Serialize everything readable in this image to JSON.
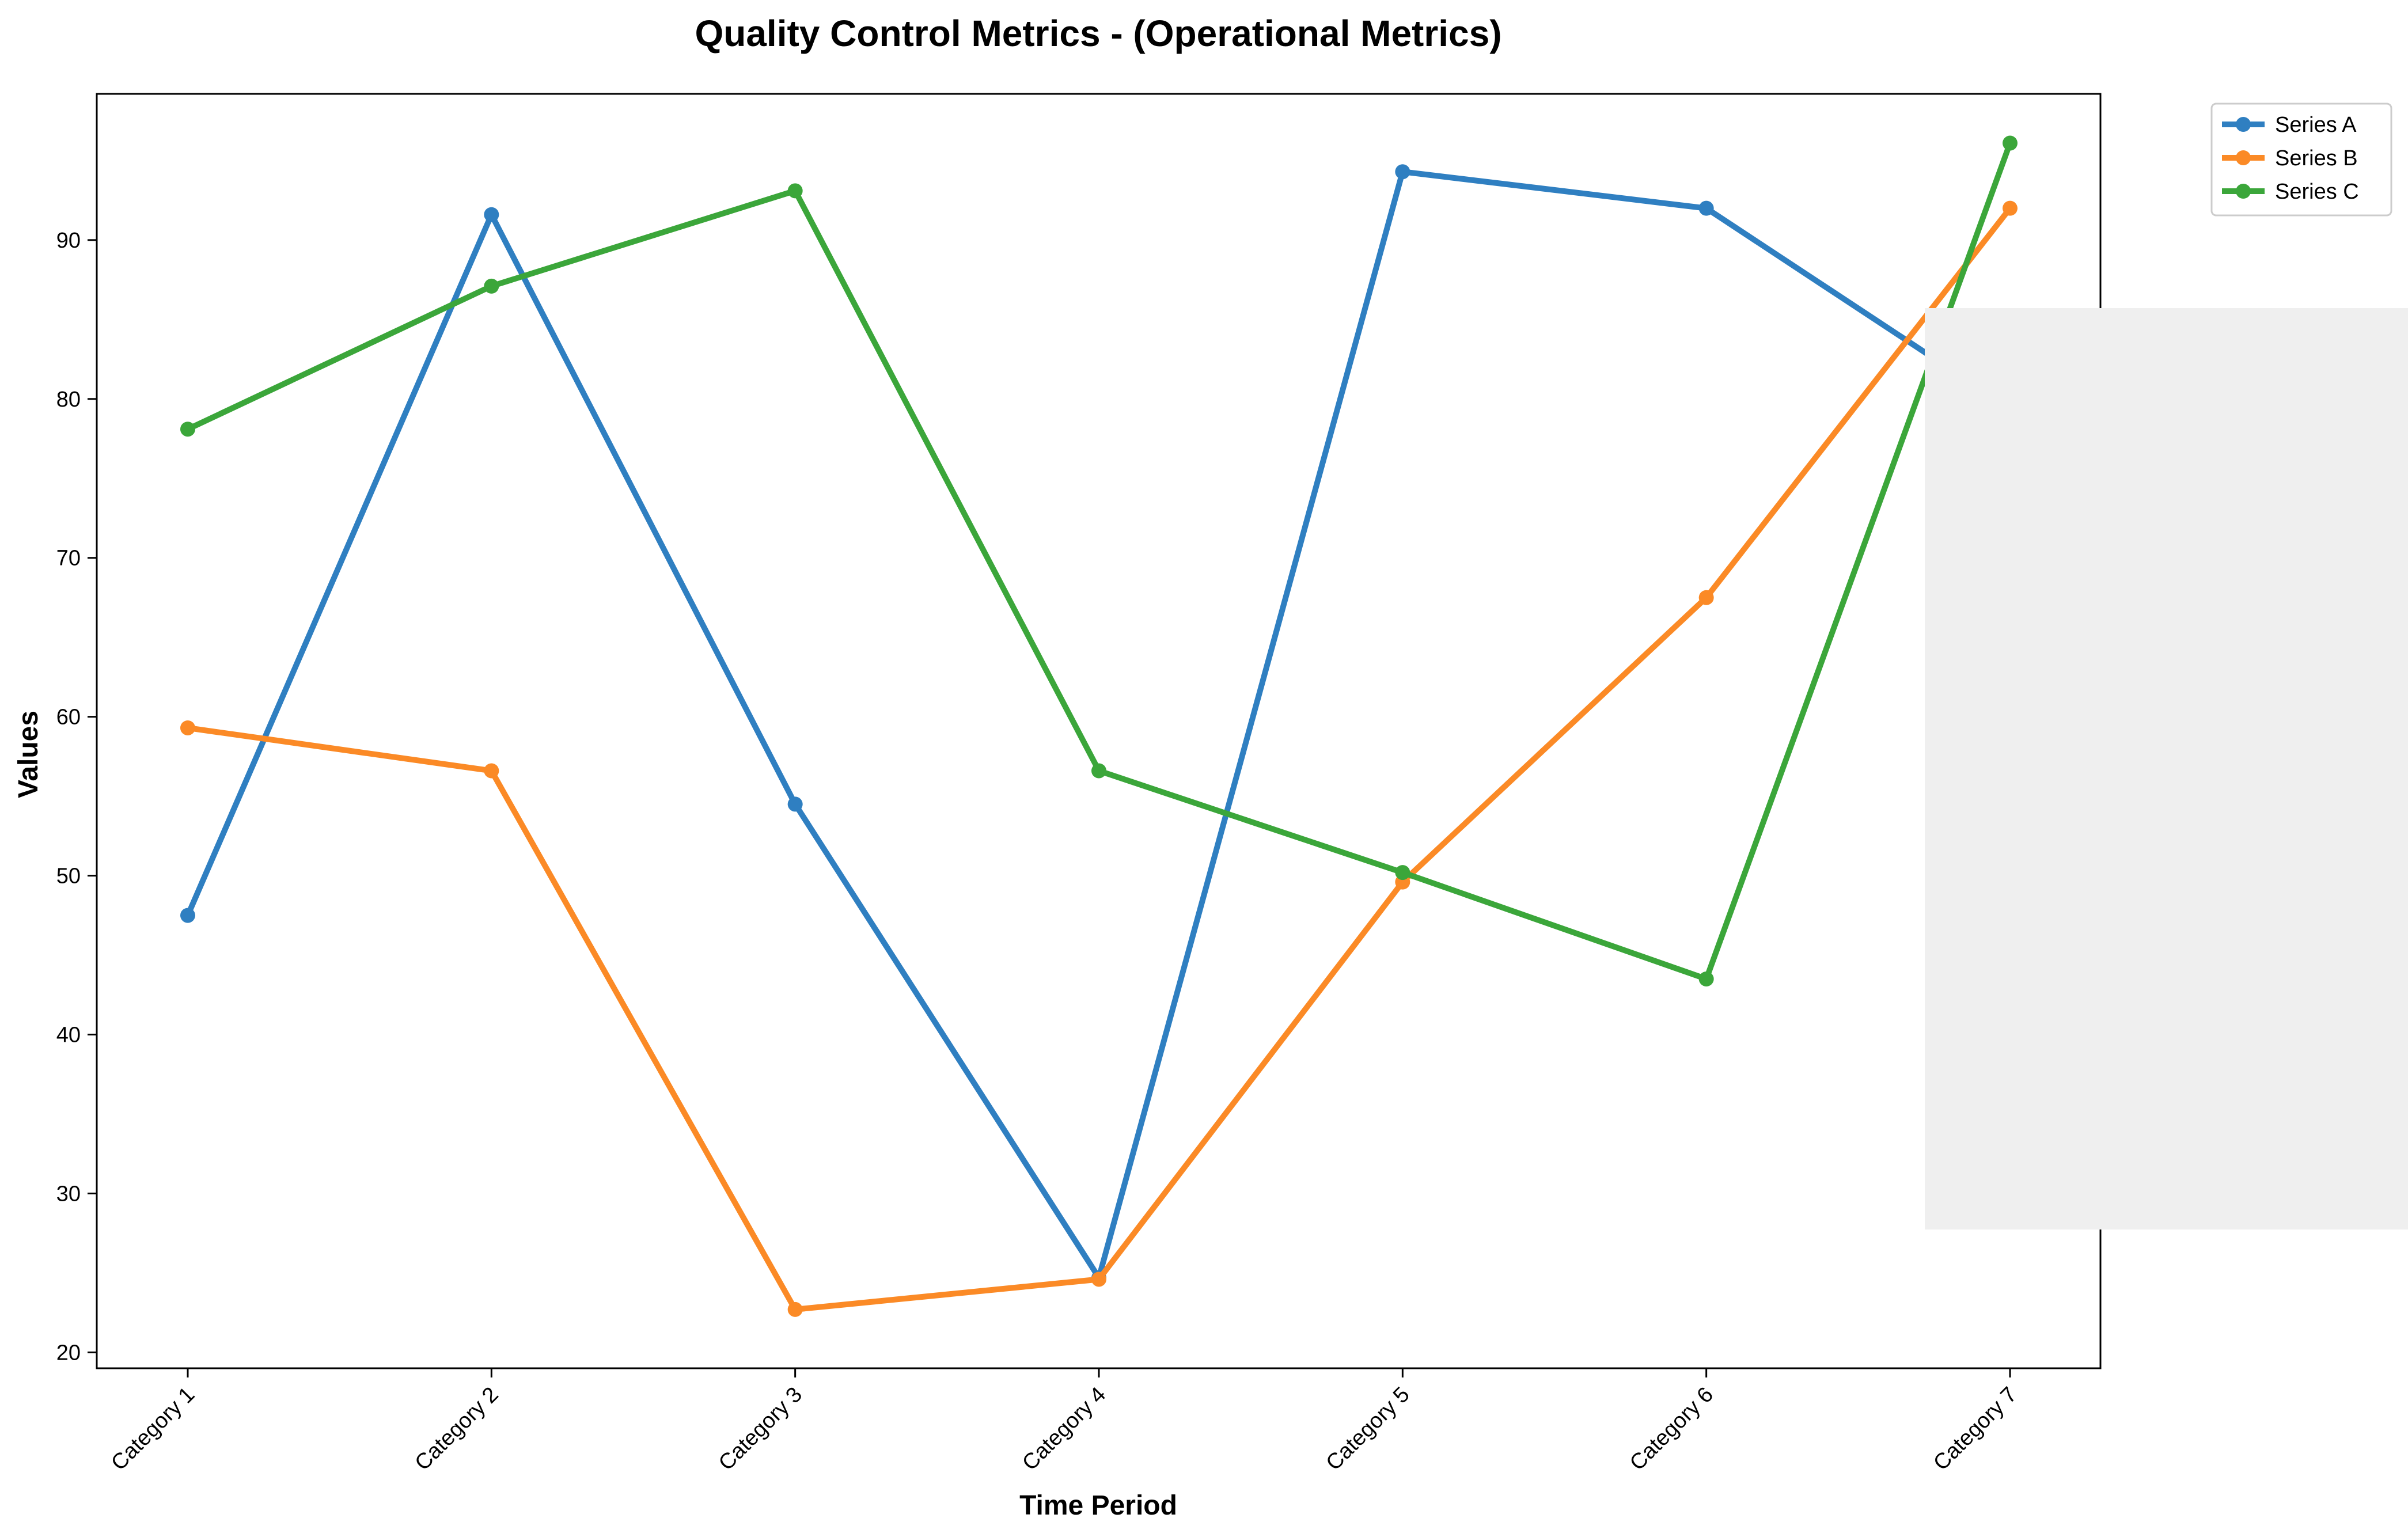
{
  "chart_data": {
    "type": "line",
    "title": "Quality Control Metrics - (Operational Metrics)",
    "xlabel": "Time Period",
    "ylabel": "Values",
    "categories": [
      "Category 1",
      "Category 2",
      "Category 3",
      "Category 4",
      "Category 5",
      "Category 6",
      "Category 7"
    ],
    "yticks": [
      20,
      30,
      40,
      50,
      60,
      70,
      80,
      90
    ],
    "ylim": [
      19,
      99.2
    ],
    "grid": false,
    "legend_position": "outside-top-right",
    "series": [
      {
        "name": "Series A",
        "color": "#2f7fc1",
        "values": [
          47.5,
          91.6,
          54.5,
          24.7,
          94.3,
          92.0,
          79.4
        ]
      },
      {
        "name": "Series B",
        "color": "#fb8a26",
        "values": [
          59.3,
          56.6,
          22.7,
          24.6,
          49.6,
          67.5,
          92.0
        ]
      },
      {
        "name": "Series C",
        "color": "#3ba63a",
        "values": [
          78.1,
          87.1,
          93.1,
          56.6,
          50.2,
          43.5,
          96.1
        ]
      }
    ],
    "overlay_color": "#efefef"
  }
}
